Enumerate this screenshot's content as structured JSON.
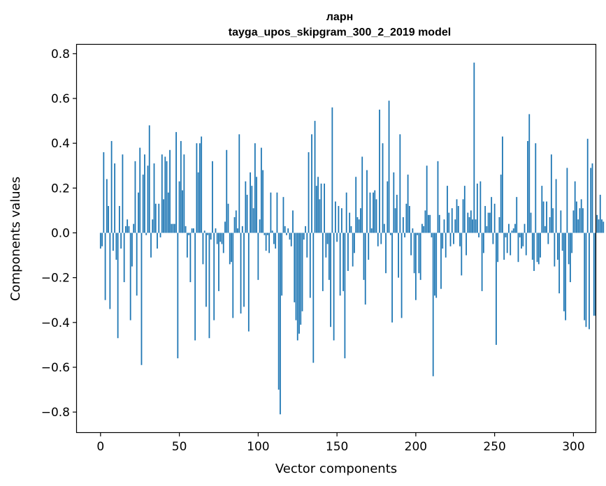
{
  "chart_data": {
    "type": "bar",
    "title_line1": "ларн",
    "title_line2": "tayga_upos_skipgram_300_2_2019 model",
    "xlabel": "Vector components",
    "ylabel": "Components values",
    "xlim": [
      -15,
      314
    ],
    "ylim": [
      -0.89,
      0.84
    ],
    "xticks": [
      0,
      50,
      100,
      150,
      200,
      250,
      300
    ],
    "yticks": [
      -0.8,
      -0.6,
      -0.4,
      -0.2,
      0.0,
      0.2,
      0.4,
      0.6,
      0.8
    ],
    "ytick_labels": [
      "−0.8",
      "−0.6",
      "−0.4",
      "−0.2",
      "0.0",
      "0.2",
      "0.4",
      "0.6",
      "0.8"
    ],
    "bar_color": "#1f77b4",
    "values": [
      -0.07,
      -0.06,
      0.36,
      -0.3,
      0.24,
      0.12,
      -0.34,
      0.41,
      -0.08,
      0.31,
      -0.12,
      -0.47,
      0.12,
      -0.07,
      0.35,
      -0.22,
      0.03,
      0.06,
      0.03,
      -0.39,
      -0.15,
      0.04,
      0.32,
      -0.28,
      0.18,
      0.38,
      -0.59,
      0.26,
      0.35,
      -0.01,
      0.3,
      0.48,
      -0.11,
      0.06,
      0.31,
      0.13,
      -0.07,
      0.13,
      -0.02,
      0.35,
      0.15,
      0.34,
      0.32,
      0.18,
      0.37,
      0.04,
      0.04,
      0.04,
      0.45,
      -0.56,
      0.23,
      0.41,
      0.19,
      0.35,
      0.03,
      -0.11,
      -0.01,
      -0.22,
      0.02,
      0.02,
      -0.48,
      0.4,
      0.27,
      0.4,
      0.43,
      -0.14,
      0.01,
      -0.33,
      -0.01,
      -0.47,
      -0.03,
      0.32,
      -0.39,
      0.02,
      -0.05,
      -0.26,
      -0.04,
      -0.05,
      -0.09,
      0.05,
      0.37,
      0.13,
      -0.14,
      -0.13,
      -0.38,
      0.07,
      0.1,
      0.02,
      0.44,
      -0.36,
      0.03,
      -0.33,
      0.23,
      0.17,
      -0.44,
      0.27,
      0.21,
      0.11,
      0.4,
      0.25,
      -0.21,
      0.06,
      0.38,
      0.28,
      -0.01,
      -0.08,
      -0.01,
      -0.09,
      0.18,
      0.01,
      -0.05,
      -0.07,
      0.18,
      -0.7,
      -0.81,
      -0.28,
      0.16,
      0.03,
      -0.01,
      0.02,
      -0.03,
      -0.06,
      0.1,
      -0.31,
      -0.39,
      -0.48,
      -0.45,
      -0.41,
      -0.35,
      -0.03,
      0.03,
      -0.11,
      0.36,
      -0.29,
      0.44,
      -0.58,
      0.5,
      0.21,
      0.25,
      0.15,
      0.22,
      -0.26,
      0.22,
      -0.11,
      -0.05,
      -0.21,
      -0.42,
      0.56,
      -0.48,
      0.14,
      -0.04,
      0.12,
      -0.28,
      0.11,
      -0.26,
      -0.56,
      0.18,
      -0.17,
      0.09,
      0.03,
      -0.15,
      -0.09,
      0.25,
      0.07,
      0.06,
      0.11,
      0.34,
      -0.21,
      -0.32,
      0.28,
      -0.12,
      0.18,
      0.02,
      0.18,
      0.19,
      0.15,
      -0.06,
      0.55,
      -0.05,
      0.4,
      0.04,
      -0.18,
      0.23,
      0.59,
      -0.01,
      -0.4,
      0.27,
      0.11,
      0.17,
      -0.2,
      0.44,
      -0.38,
      0.07,
      -0.02,
      0.13,
      0.26,
      0.12,
      -0.1,
      0.02,
      -0.18,
      -0.3,
      -0.01,
      -0.18,
      -0.21,
      0.04,
      0.03,
      0.1,
      0.3,
      0.08,
      0.08,
      -0.02,
      -0.64,
      -0.28,
      -0.29,
      0.32,
      0.08,
      -0.25,
      -0.07,
      0.06,
      -0.11,
      0.21,
      0.09,
      -0.06,
      0.11,
      -0.05,
      0.06,
      0.15,
      0.12,
      -0.06,
      -0.19,
      0.15,
      0.21,
      -0.1,
      0.09,
      0.07,
      0.1,
      0.06,
      0.76,
      0.06,
      0.22,
      -0.02,
      0.23,
      -0.26,
      -0.09,
      0.12,
      0.03,
      0.09,
      0.09,
      0.16,
      -0.05,
      0.13,
      -0.5,
      -0.13,
      0.07,
      0.26,
      0.43,
      -0.12,
      -0.02,
      -0.09,
      0.04,
      -0.1,
      0.01,
      0.02,
      0.04,
      0.16,
      -0.13,
      -0.02,
      -0.07,
      -0.06,
      0.04,
      -0.1,
      0.41,
      0.53,
      0.09,
      -0.12,
      -0.17,
      0.4,
      -0.13,
      -0.14,
      -0.11,
      0.21,
      0.14,
      0.03,
      0.14,
      -0.05,
      0.07,
      0.35,
      0.11,
      -0.15,
      0.24,
      -0.12,
      -0.27,
      0.1,
      -0.08,
      -0.35,
      -0.39,
      0.29,
      -0.14,
      -0.22,
      -0.09,
      0.1,
      0.23,
      0.14,
      0.06,
      0.11,
      0.15,
      0.11,
      -0.39,
      -0.42,
      0.42,
      -0.43,
      0.29,
      0.31,
      -0.37,
      -0.37,
      0.08,
      0.06,
      0.17,
      0.06,
      0.05
    ]
  }
}
